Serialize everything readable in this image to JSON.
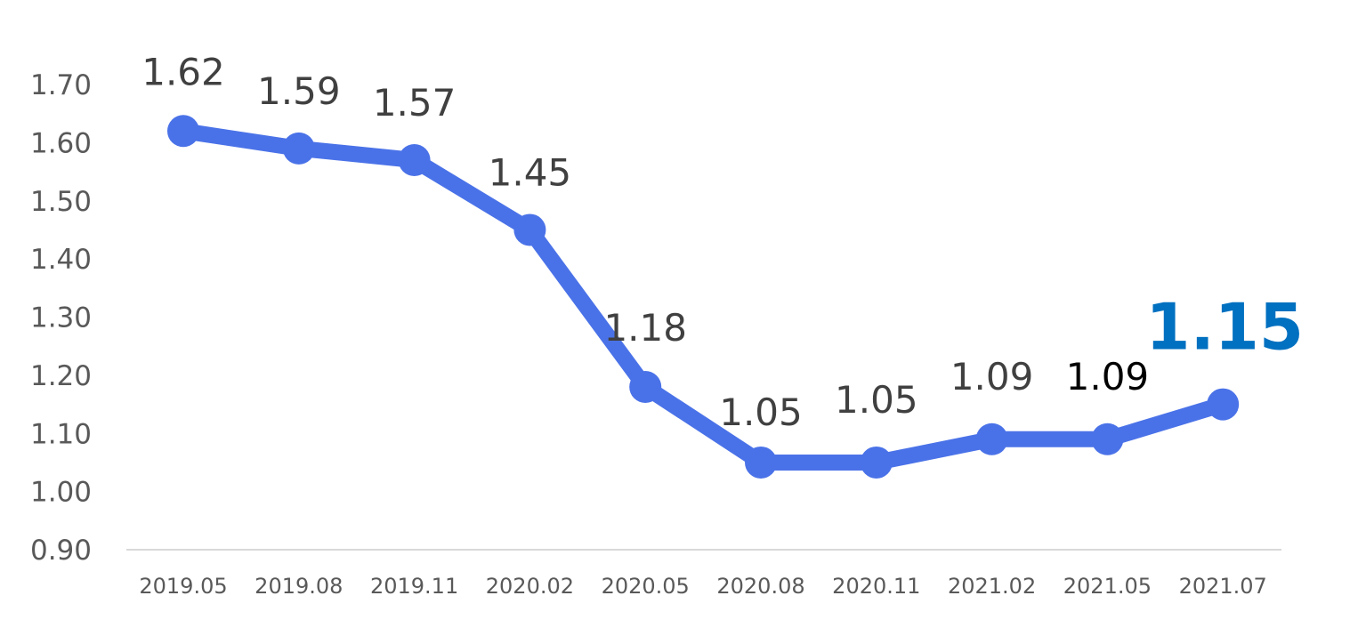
{
  "chart_data": {
    "type": "line",
    "title": "",
    "xlabel": "",
    "ylabel": "",
    "categories": [
      "2019.05",
      "2019.08",
      "2019.11",
      "2020.02",
      "2020.05",
      "2020.08",
      "2020.11",
      "2021.02",
      "2021.05",
      "2021.07"
    ],
    "series": [
      {
        "values": [
          1.62,
          1.59,
          1.57,
          1.45,
          1.18,
          1.05,
          1.05,
          1.09,
          1.09,
          1.15
        ]
      }
    ],
    "data_labels": [
      "1.62",
      "1.59",
      "1.57",
      "1.45",
      "1.18",
      "1.05",
      "1.05",
      "1.09",
      "1.09",
      "1.15"
    ],
    "highlight_index": 9,
    "ylim": [
      0.9,
      1.7
    ],
    "y_ticks": [
      "0.90",
      "1.00",
      "1.10",
      "1.20",
      "1.30",
      "1.40",
      "1.50",
      "1.60",
      "1.70"
    ],
    "grid": false,
    "legend": "none",
    "colors": {
      "line": "#4a72e8",
      "label": "#404040",
      "label_dark": "#000000",
      "highlight": "#0070c0",
      "axis": "#d9d9d9",
      "tick": "#595959"
    }
  }
}
